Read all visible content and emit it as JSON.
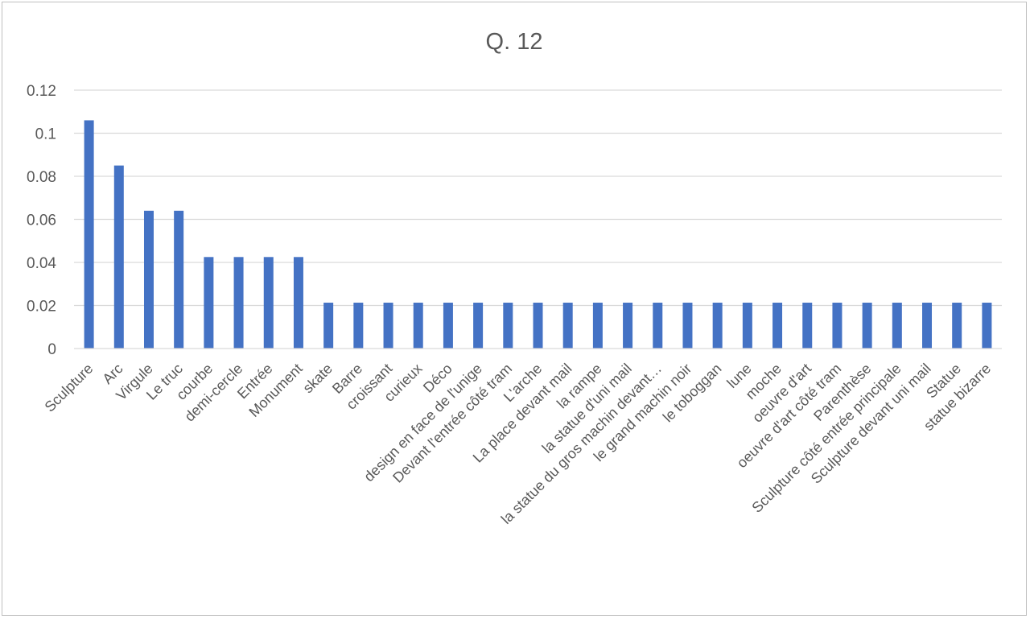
{
  "chart_data": {
    "type": "bar",
    "title": "Q. 12",
    "xlabel": "",
    "ylabel": "",
    "ylim": [
      0,
      0.12
    ],
    "yticks": [
      "0",
      "0.02",
      "0.04",
      "0.06",
      "0.08",
      "0.1",
      "0.12"
    ],
    "grid": true,
    "legend": "none",
    "bar_color": "#4472c4",
    "categories": [
      "Sculpture",
      "Arc",
      "Virgule",
      "Le truc",
      "courbe",
      "demi-cercle",
      "Entrée",
      "Monument",
      "skate",
      "Barre",
      "croissant",
      "curieux",
      "Déco",
      "design en face de l'unige",
      "Devant l'entrée côté tram",
      "L'arche",
      "La place devant mail",
      "la rampe",
      "la statue d'uni mail",
      "la statue du gros machin devant…",
      "le grand machin noir",
      "le toboggan",
      "lune",
      "moche",
      "oeuvre d'art",
      "oeuvre d'art côté tram",
      "Parenthèse",
      "Sculpture côté entrée principale",
      "Sculpture devant uni mail",
      "Statue",
      "statue bizarre"
    ],
    "values": [
      0.106,
      0.085,
      0.064,
      0.064,
      0.0425,
      0.0425,
      0.0425,
      0.0425,
      0.0213,
      0.0213,
      0.0213,
      0.0213,
      0.0213,
      0.0213,
      0.0213,
      0.0213,
      0.0213,
      0.0213,
      0.0213,
      0.0213,
      0.0213,
      0.0213,
      0.0213,
      0.0213,
      0.0213,
      0.0213,
      0.0213,
      0.0213,
      0.0213,
      0.0213,
      0.0213
    ]
  }
}
